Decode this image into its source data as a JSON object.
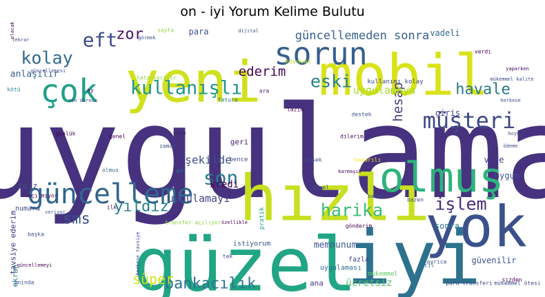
{
  "chart_data": {
    "type": "wordcloud",
    "title": "on - iyi Yorum Kelime Bulutu",
    "colormap": "viridis",
    "words": [
      {
        "text": "uygulama",
        "weight": 1.0,
        "color": "#46327e",
        "orient": "h"
      },
      {
        "text": "güzel",
        "weight": 0.72,
        "color": "#21a585",
        "orient": "h"
      },
      {
        "text": "iyi",
        "weight": 0.72,
        "color": "#2c728e",
        "orient": "h"
      },
      {
        "text": "yok",
        "weight": 0.62,
        "color": "#3b518b",
        "orient": "h"
      },
      {
        "text": "yeni",
        "weight": 0.62,
        "color": "#d0e11c",
        "orient": "h"
      },
      {
        "text": "mobil",
        "weight": 0.62,
        "color": "#d8e219",
        "orient": "h"
      },
      {
        "text": "hızlı",
        "weight": 0.5,
        "color": "#c8e020",
        "orient": "h"
      },
      {
        "text": "olmuş",
        "weight": 0.45,
        "color": "#2eb37c",
        "orient": "h"
      },
      {
        "text": "sorun",
        "weight": 0.38,
        "color": "#355f8d",
        "orient": "h"
      },
      {
        "text": "güncelleme",
        "weight": 0.3,
        "color": "#31668e",
        "orient": "h"
      },
      {
        "text": "çok",
        "weight": 0.33,
        "color": "#1fa088",
        "orient": "h"
      },
      {
        "text": "müşteri",
        "weight": 0.28,
        "color": "#3e4989",
        "orient": "h"
      },
      {
        "text": "kullanışlı",
        "weight": 0.24,
        "color": "#1f968b",
        "orient": "h"
      },
      {
        "text": "eft",
        "weight": 0.24,
        "color": "#3e4a89",
        "orient": "h"
      },
      {
        "text": "kolay",
        "weight": 0.22,
        "color": "#30698e",
        "orient": "h"
      },
      {
        "text": "eski",
        "weight": 0.22,
        "color": "#26828e",
        "orient": "h"
      },
      {
        "text": "son",
        "weight": 0.22,
        "color": "#287c8e",
        "orient": "h"
      },
      {
        "text": "harika",
        "weight": 0.2,
        "color": "#3bbb75",
        "orient": "h"
      },
      {
        "text": "havale",
        "weight": 0.18,
        "color": "#2a788e",
        "orient": "h"
      },
      {
        "text": "işlem",
        "weight": 0.2,
        "color": "#472c7a",
        "orient": "h"
      },
      {
        "text": "bankacılık",
        "weight": 0.18,
        "color": "#2c728e",
        "orient": "h"
      },
      {
        "text": "yıldız",
        "weight": 0.18,
        "color": "#27808e",
        "orient": "h"
      },
      {
        "text": "sms",
        "weight": 0.18,
        "color": "#3b528b",
        "orient": "h"
      },
      {
        "text": "zor",
        "weight": 0.18,
        "color": "#481467",
        "orient": "h"
      },
      {
        "text": "ederim",
        "weight": 0.16,
        "color": "#440154",
        "orient": "h"
      },
      {
        "text": "süper",
        "weight": 0.16,
        "color": "#d2e21b",
        "orient": "h"
      },
      {
        "text": "hesap",
        "weight": 0.16,
        "color": "#433e85",
        "orient": "v"
      },
      {
        "text": "güncellemeden sonra",
        "weight": 0.12,
        "color": "#355f8d",
        "orient": "h"
      },
      {
        "text": "uygulamaya",
        "weight": 0.12,
        "color": "#a5db36",
        "orient": "h"
      },
      {
        "text": "uygulamayı",
        "weight": 0.11,
        "color": "#414487",
        "orient": "h"
      },
      {
        "text": "şekilde",
        "weight": 0.1,
        "color": "#3b528b",
        "orient": "h"
      },
      {
        "text": "ücretsiz",
        "weight": 0.1,
        "color": "#4ac16d",
        "orient": "h"
      },
      {
        "text": "vadeli",
        "weight": 0.1,
        "color": "#31688e",
        "orient": "h"
      },
      {
        "text": "güvenilir",
        "weight": 0.1,
        "color": "#3b528b",
        "orient": "h"
      },
      {
        "text": "memnunum",
        "weight": 0.1,
        "color": "#39568c",
        "orient": "h"
      },
      {
        "text": "para",
        "weight": 0.1,
        "color": "#3b528b",
        "orient": "h"
      },
      {
        "text": "anlaşılır",
        "weight": 0.1,
        "color": "#355f8d",
        "orient": "h"
      },
      {
        "text": "kredi",
        "weight": 0.1,
        "color": "#440154",
        "orient": "h"
      },
      {
        "text": "giriş",
        "weight": 0.1,
        "color": "#404688",
        "orient": "h"
      },
      {
        "text": "vade",
        "weight": 0.09,
        "color": "#453882",
        "orient": "h"
      },
      {
        "text": "uygun",
        "weight": 0.09,
        "color": "#3b528b",
        "orient": "h"
      },
      {
        "text": "sonra",
        "weight": 0.09,
        "color": "#2a788e",
        "orient": "h"
      },
      {
        "text": "faiz",
        "weight": 0.09,
        "color": "#3e4a89",
        "orient": "h"
      },
      {
        "text": "geri",
        "weight": 0.09,
        "color": "#481f70",
        "orient": "h"
      },
      {
        "text": "ana",
        "weight": 0.09,
        "color": "#453882",
        "orient": "h"
      },
      {
        "text": "tavsiye ederim",
        "weight": 0.09,
        "color": "#46337e",
        "orient": "v"
      },
      {
        "text": "ekran",
        "weight": 0.08,
        "color": "#287d8e",
        "orient": "v"
      },
      {
        "text": "kullanımı kolay",
        "weight": 0.07,
        "color": "#404688",
        "orient": "h"
      },
      {
        "text": "uygulaması",
        "weight": 0.07,
        "color": "#2d708e",
        "orient": "h"
      },
      {
        "text": "pratik",
        "weight": 0.07,
        "color": "#1e9b8a",
        "orient": "v"
      },
      {
        "text": "istiyorum",
        "weight": 0.06,
        "color": "#3b528b",
        "orient": "h"
      },
      {
        "text": "bence",
        "weight": 0.06,
        "color": "#3e4a89",
        "orient": "h"
      },
      {
        "text": "numara",
        "weight": 0.06,
        "color": "#3e4a89",
        "orient": "h"
      },
      {
        "text": "mükemmel",
        "weight": 0.06,
        "color": "#5ec962",
        "orient": "h"
      },
      {
        "text": "fazla",
        "weight": 0.06,
        "color": "#404688",
        "orient": "h"
      },
      {
        "text": "sayfa",
        "weight": 0.05,
        "color": "#8fd744",
        "orient": "h"
      },
      {
        "text": "görmek",
        "weight": 0.04,
        "color": "#3e4a89",
        "orient": "h"
      },
      {
        "text": "dijital",
        "weight": 0.05,
        "color": "#39568c",
        "orient": "h"
      },
      {
        "text": "mevduat",
        "weight": 0.05,
        "color": "#b5de2b",
        "orient": "h"
      },
      {
        "text": "fatura",
        "weight": 0.05,
        "color": "#2d708e",
        "orient": "h"
      },
      {
        "text": "kötü",
        "weight": 0.05,
        "color": "#26828e",
        "orient": "h"
      },
      {
        "text": "ay",
        "weight": 0.05,
        "color": "#440154",
        "orient": "h"
      },
      {
        "text": "ara",
        "weight": 0.05,
        "color": "#482475",
        "orient": "h"
      },
      {
        "text": "lazım",
        "weight": 0.05,
        "color": "#440154",
        "orient": "h"
      },
      {
        "text": "destek",
        "weight": 0.04,
        "color": "#3b528b",
        "orient": "h"
      },
      {
        "text": "zaman",
        "weight": 0.05,
        "color": "#3b528b",
        "orient": "h"
      },
      {
        "text": "sade",
        "weight": 0.05,
        "color": "#482475",
        "orient": "h"
      },
      {
        "text": "genel",
        "weight": 0.04,
        "color": "#440154",
        "orient": "h"
      },
      {
        "text": "olmus",
        "weight": 0.05,
        "color": "#31688e",
        "orient": "h"
      },
      {
        "text": "gün",
        "weight": 0.04,
        "color": "#2c728e",
        "orient": "h"
      },
      {
        "text": "yüksek",
        "weight": 0.05,
        "color": "#3e4a89",
        "orient": "h"
      },
      {
        "text": "başarılı",
        "weight": 0.05,
        "color": "#fde725",
        "orient": "h"
      },
      {
        "text": "karmaşık",
        "weight": 0.04,
        "color": "#440154",
        "orient": "h"
      },
      {
        "text": "güzel",
        "weight": 0.05,
        "color": "#3b528b",
        "orient": "h"
      },
      {
        "text": "bankalar",
        "weight": 0.04,
        "color": "#3b528b",
        "orient": "h"
      },
      {
        "text": "bazen",
        "weight": 0.04,
        "color": "#3b528b",
        "orient": "h"
      },
      {
        "text": "gönderim",
        "weight": 0.04,
        "color": "#440154",
        "orient": "h"
      },
      {
        "text": "acil",
        "weight": 0.04,
        "color": "#2d708e",
        "orient": "h"
      },
      {
        "text": "ayrıca",
        "weight": 0.04,
        "color": "#3b528b",
        "orient": "h"
      },
      {
        "text": "başka",
        "weight": 0.04,
        "color": "#3b528b",
        "orient": "h"
      },
      {
        "text": "aninda",
        "weight": 0.05,
        "color": "#3b528b",
        "orient": "h"
      },
      {
        "text": "ilk",
        "weight": 0.04,
        "color": "#440154",
        "orient": "h"
      },
      {
        "text": "tek",
        "weight": 0.04,
        "color": "#414487",
        "orient": "h"
      },
      {
        "text": "verdi",
        "weight": 0.04,
        "color": "#440154",
        "orient": "h"
      },
      {
        "text": "veriyor",
        "weight": 0.04,
        "color": "#3b528b",
        "orient": "h"
      },
      {
        "text": "günlük",
        "weight": 0.04,
        "color": "#440154",
        "orient": "h"
      },
      {
        "text": "hata veriyor",
        "weight": 0.04,
        "color": "#8fd744",
        "orient": "h"
      },
      {
        "text": "mükemmel kalite",
        "weight": 0.04,
        "color": "#3e4a89",
        "orient": "h"
      },
      {
        "text": "herkese",
        "weight": 0.03,
        "color": "#3e4a89",
        "orient": "h"
      },
      {
        "text": "ödeme",
        "weight": 0.03,
        "color": "#3e4a89",
        "orient": "h"
      },
      {
        "text": "koyu",
        "weight": 0.03,
        "color": "#3e4a89",
        "orient": "h"
      },
      {
        "text": "açılmıyor",
        "weight": 0.04,
        "color": "#440154",
        "orient": "h"
      },
      {
        "text": "transfer açılıyor",
        "weight": 0.04,
        "color": "#8fd744",
        "orient": "h"
      },
      {
        "text": "dilerim",
        "weight": 0.04,
        "color": "#440154",
        "orient": "h"
      },
      {
        "text": "para transferi",
        "weight": 0.04,
        "color": "#3e4a89",
        "orient": "h"
      },
      {
        "text": "mükemmel ötesi",
        "weight": 0.04,
        "color": "#3e4a89",
        "orient": "h"
      },
      {
        "text": "sızden",
        "weight": 0.04,
        "color": "#440154",
        "orient": "h"
      },
      {
        "text": "yaparken",
        "weight": 0.03,
        "color": "#440154",
        "orient": "h"
      },
      {
        "text": "olacak",
        "weight": 0.03,
        "color": "#440154",
        "orient": "v"
      },
      {
        "text": "tekrar",
        "weight": 0.03,
        "color": "#3e4a89",
        "orient": "h"
      },
      {
        "text": "güncellemesi",
        "weight": 0.03,
        "color": "#3e4a89",
        "orient": "h"
      },
      {
        "text": "son derece",
        "weight": 0.03,
        "color": "#3e4a89",
        "orient": "h"
      },
      {
        "text": "güncellemeyi",
        "weight": 0.03,
        "color": "#440154",
        "orient": "h"
      },
      {
        "text": "herkese tavsiye",
        "weight": 0.04,
        "color": "#3e4a89",
        "orient": "v"
      },
      {
        "text": "özellikle",
        "weight": 0.03,
        "color": "#440154",
        "orient": "h"
      }
    ]
  }
}
